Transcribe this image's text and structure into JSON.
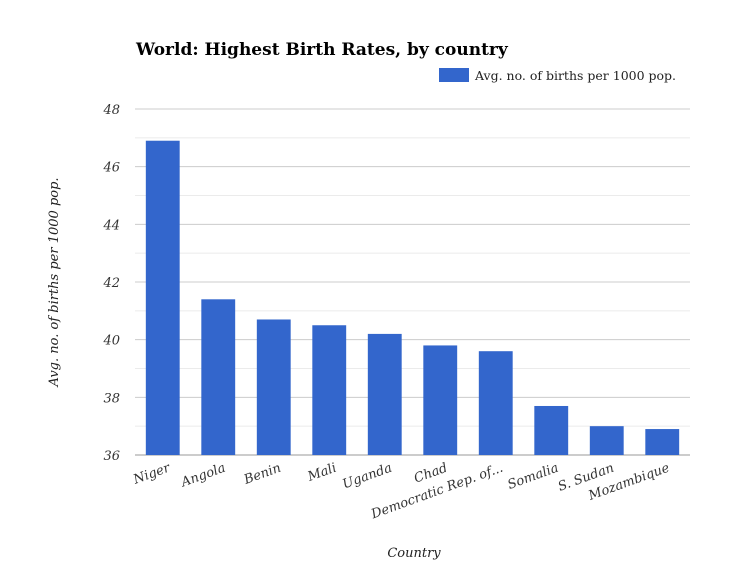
{
  "chart_data": {
    "type": "bar",
    "title": "World: Highest Birth Rates, by country",
    "xlabel": "Country",
    "ylabel": "Avg. no. of births per 1000 pop.",
    "categories": [
      "Niger",
      "Angola",
      "Benin",
      "Mali",
      "Uganda",
      "Chad",
      "Democratic Rep. of...",
      "Somalia",
      "S. Sudan",
      "Mozambique"
    ],
    "series": [
      {
        "name": "Avg. no. of births per 1000 pop.",
        "values": [
          46.9,
          41.4,
          40.7,
          40.5,
          40.2,
          39.8,
          39.6,
          37.7,
          37.0,
          36.9
        ],
        "color": "#3366cc"
      }
    ],
    "ylim": [
      36,
      48
    ],
    "yticks": [
      36,
      38,
      40,
      42,
      44,
      46,
      48
    ],
    "grid": true,
    "legend_position": "top-right"
  }
}
